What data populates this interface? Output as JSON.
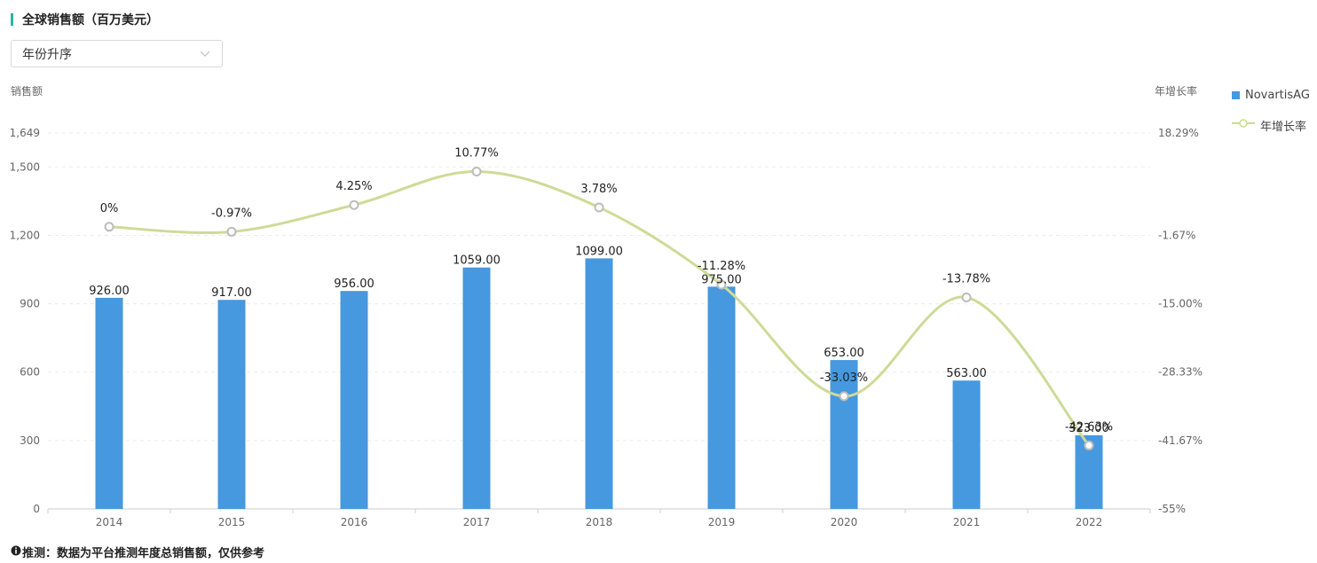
{
  "page": {
    "title": "全球销售额（百万美元）",
    "sort_select": {
      "value": "年份升序"
    },
    "footnote": "推测：数据为平台推测年度总销售额，仅供参考"
  },
  "icons": {
    "info": "info-circle-icon",
    "dropdown": "chevron-down-icon"
  },
  "chart_data": {
    "type": "bar",
    "title": "全球销售额（百万美元）",
    "categories": [
      "2014",
      "2015",
      "2016",
      "2017",
      "2018",
      "2019",
      "2020",
      "2021",
      "2022"
    ],
    "series": [
      {
        "name": "NovartisAG",
        "type": "bar",
        "axis": "left",
        "color": "#4698df",
        "values": [
          926.0,
          917.0,
          956.0,
          1059.0,
          1099.0,
          975.0,
          653.0,
          563.0,
          323.0
        ],
        "labels": [
          "926.00",
          "917.00",
          "956.00",
          "1059.00",
          "1099.00",
          "975.00",
          "653.00",
          "563.00",
          "323.00"
        ]
      },
      {
        "name": "年增长率",
        "type": "line",
        "smooth": true,
        "axis": "right",
        "color": "#cddb97",
        "values": [
          0,
          -0.97,
          4.25,
          10.77,
          3.78,
          -11.28,
          -33.03,
          -13.78,
          -42.63
        ],
        "labels": [
          "0%",
          "-0.97%",
          "4.25%",
          "10.77%",
          "3.78%",
          "-11.28%",
          "-33.03%",
          "-13.78%",
          "-42.63%"
        ]
      }
    ],
    "y_left": {
      "label": "销售额",
      "ticks": [
        0,
        300,
        600,
        900,
        1200,
        1500,
        1649
      ],
      "tick_labels": [
        "0",
        "300",
        "600",
        "900",
        "1,200",
        "1,500",
        "1,649"
      ],
      "ylim": [
        0,
        1649
      ]
    },
    "y_right": {
      "label": "年增长率",
      "ticks": [
        -55,
        -41.67,
        -28.33,
        -15.0,
        -1.67,
        18.29
      ],
      "tick_labels": [
        "-55%",
        "-41.67%",
        "-28.33%",
        "-15.00%",
        "-1.67%",
        "18.29%"
      ],
      "ylim": [
        -55,
        18.29
      ]
    },
    "grid": true,
    "legend_position": "top-right"
  }
}
